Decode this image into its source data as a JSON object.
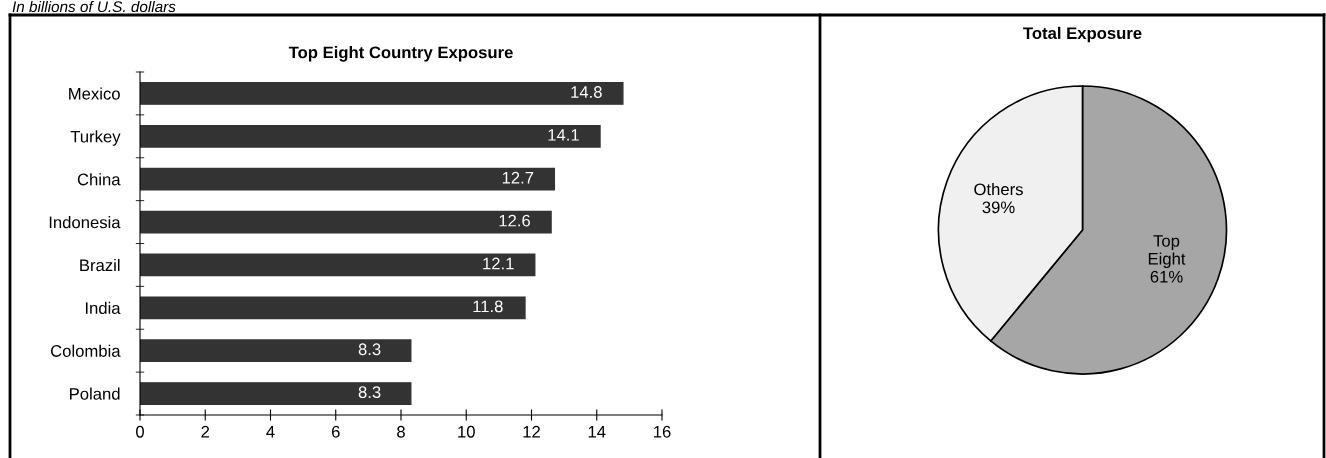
{
  "chart_data": [
    {
      "type": "bar",
      "orientation": "horizontal",
      "title": "Top Eight Country Exposure",
      "subtitle": "In billions of U.S. dollars",
      "categories": [
        "Mexico",
        "Turkey",
        "China",
        "Indonesia",
        "Brazil",
        "India",
        "Colombia",
        "Poland"
      ],
      "values": [
        14.8,
        14.1,
        12.7,
        12.6,
        12.1,
        11.8,
        8.3,
        8.3
      ],
      "color": "#333333",
      "data_labels": true,
      "xlim": [
        0,
        16
      ],
      "xticks": [
        0,
        2,
        4,
        6,
        8,
        10,
        12,
        14,
        16
      ],
      "grid": false,
      "legend": false
    },
    {
      "type": "pie",
      "title": "Total Exposure",
      "categories": [
        "Top Eight",
        "Others"
      ],
      "values": [
        61,
        39
      ],
      "colors": [
        "#a6a6a6",
        "#f0f0f0"
      ],
      "value_labels": [
        "61%",
        "39%"
      ],
      "legend": false
    }
  ]
}
